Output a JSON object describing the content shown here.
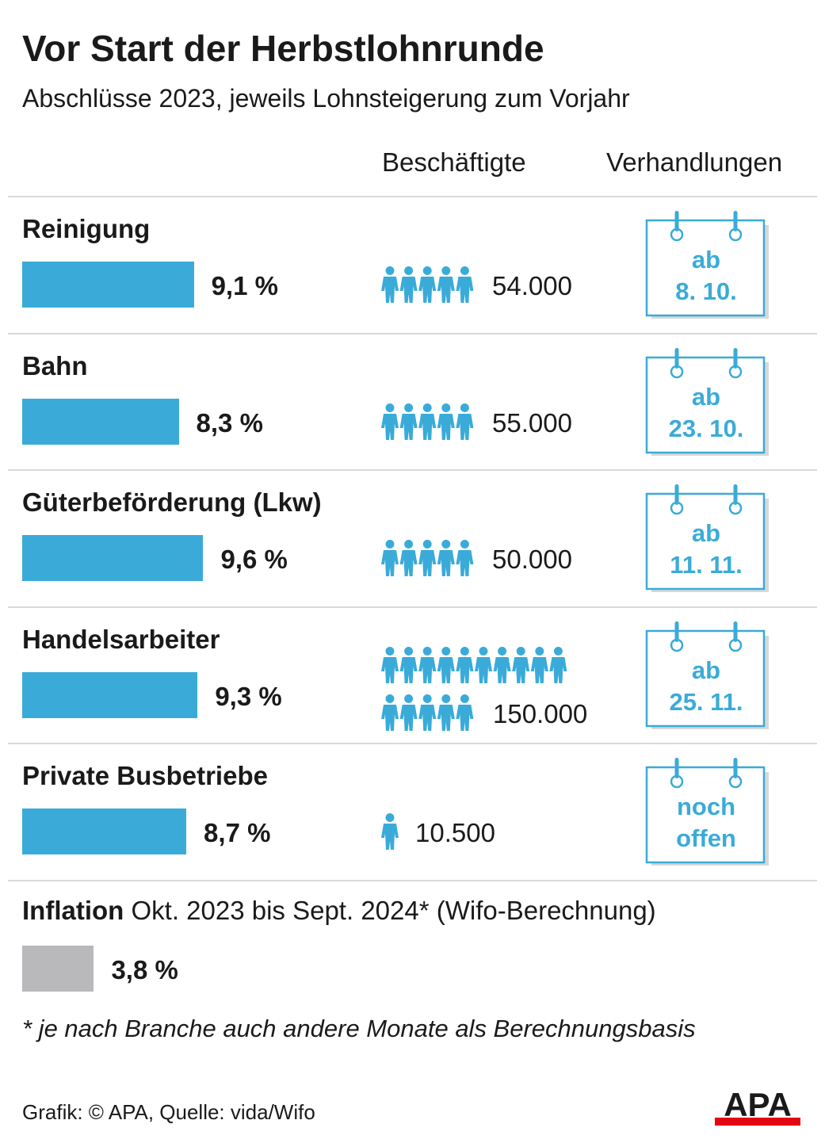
{
  "title": "Vor Start der Herbstlohnrunde",
  "subtitle": "Abschlüsse 2023, jeweils Lohnsteigerung zum Vorjahr",
  "columns": {
    "employees": "Beschäftigte",
    "negotiations": "Verhandlungen"
  },
  "chart_data": {
    "type": "bar",
    "title": "Vor Start der Herbstlohnrunde",
    "subtitle": "Abschlüsse 2023, jeweils Lohnsteigerung zum Vorjahr",
    "categories": [
      "Reinigung",
      "Bahn",
      "Güterbeförderung (Lkw)",
      "Handelsarbeiter",
      "Private Busbetriebe"
    ],
    "values": [
      9.1,
      8.3,
      9.6,
      9.3,
      8.7
    ],
    "value_labels": [
      "9,1 %",
      "8,3 %",
      "9,6 %",
      "9,3 %",
      "8,7 %"
    ],
    "unit": "%",
    "employees": [
      54000,
      55000,
      50000,
      150000,
      10500
    ],
    "employee_labels": [
      "54.000",
      "55.000",
      "50.000",
      "150.000",
      "10.500"
    ],
    "person_icons": [
      5,
      5,
      5,
      15,
      1
    ],
    "negotiations": [
      [
        "ab",
        "8. 10."
      ],
      [
        "ab",
        "23. 10."
      ],
      [
        "ab",
        "11. 11."
      ],
      [
        "ab",
        "25. 11."
      ],
      [
        "noch",
        "offen"
      ]
    ],
    "inflation": {
      "label_bold": "Inflation",
      "label_rest": "Okt. 2023 bis Sept. 2024* (Wifo-Berechnung)",
      "value": 3.8,
      "value_label": "3,8 %"
    },
    "colors": {
      "bar": "#3aabd8",
      "inflation_bar": "#b9b9bb",
      "accent": "#3aabd8"
    }
  },
  "footnote": "* je nach Branche auch andere Monate als Berechnungsbasis",
  "source": "Grafik: © APA, Quelle: vida/Wifo",
  "logo_text": "APA"
}
